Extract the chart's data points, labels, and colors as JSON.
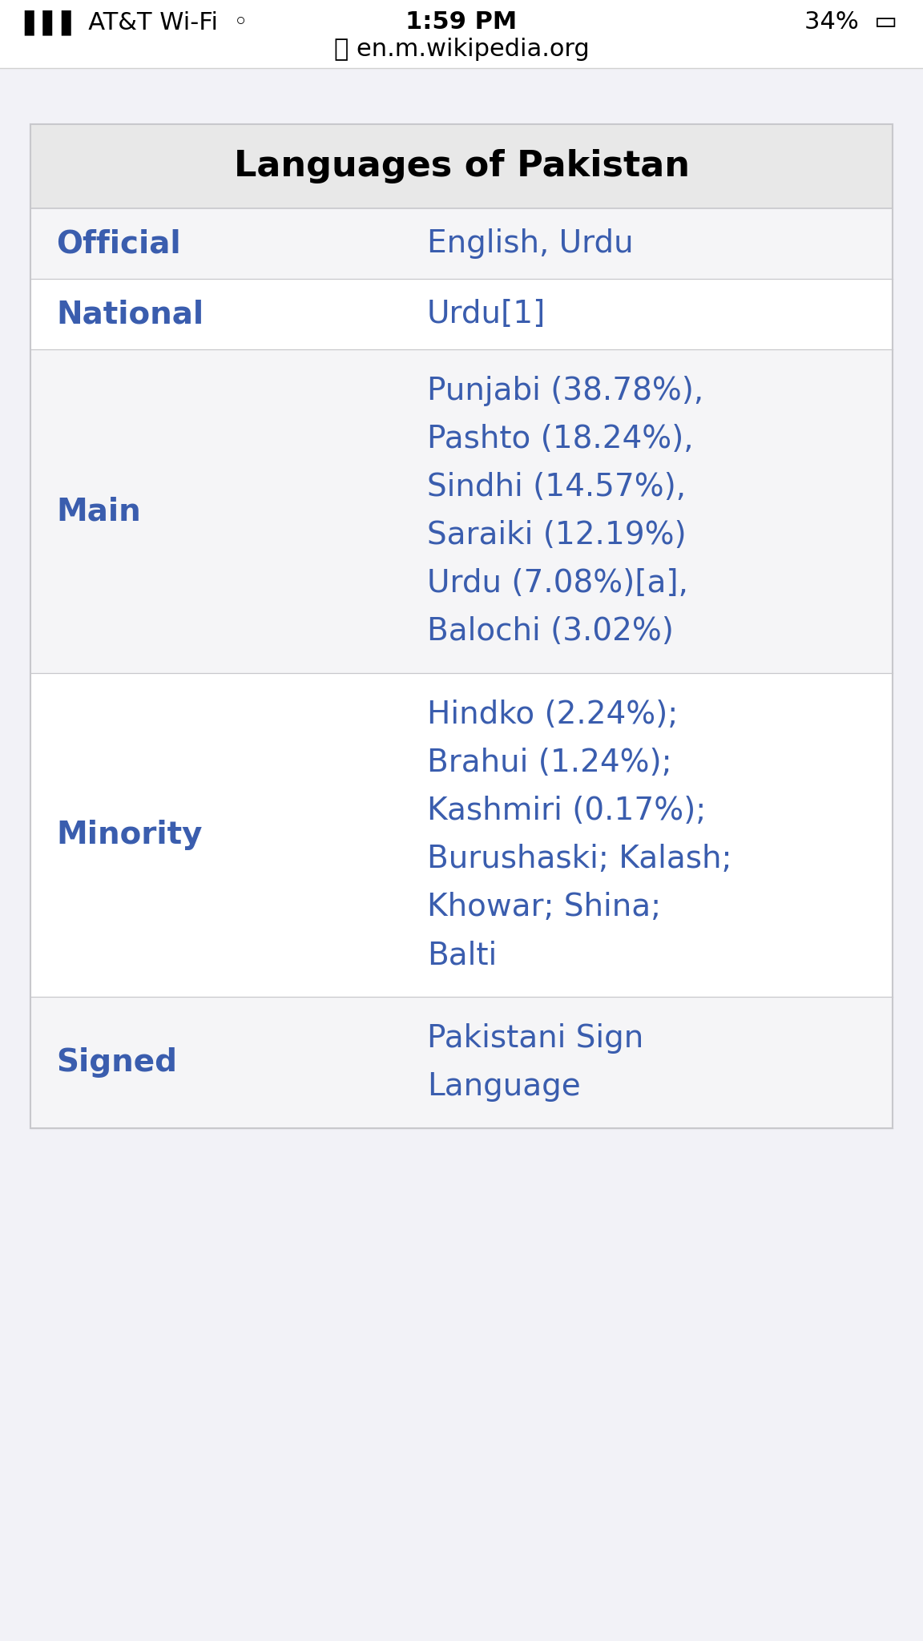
{
  "title": "Languages of Pakistan",
  "title_fontsize": 32,
  "title_color": "#000000",
  "title_bg": "#e8e8e8",
  "row_bg_light": "#f5f5f7",
  "row_bg_white": "#ffffff",
  "border_color": "#c8c8cc",
  "label_color": "#3a5dae",
  "value_color": "#3a5dae",
  "label_fontsize": 28,
  "value_fontsize": 28,
  "statusbar_bg": "#f2f2f7",
  "statusbar_text": "#000000",
  "url_text": "#000000",
  "url_fontsize": 22,
  "status_fontsize": 22,
  "rows": [
    {
      "label": "Official",
      "lines": [
        "English, Urdu"
      ]
    },
    {
      "label": "National",
      "lines": [
        "Urdu[1]"
      ]
    },
    {
      "label": "Main",
      "lines": [
        "Punjabi (38.78%),",
        "Pashto (18.24%),",
        "Sindhi (14.57%),",
        "Saraiki (12.19%)",
        "Urdu (7.08%)[a],",
        "Balochi (3.02%)"
      ]
    },
    {
      "label": "Minority",
      "lines": [
        "Hindko (2.24%);",
        "Brahui (1.24%);",
        "Kashmiri (0.17%);",
        "Burushaski; Kalash;",
        "Khowar; Shina;",
        "Balti"
      ]
    },
    {
      "label": "Signed",
      "lines": [
        "Pakistani Sign",
        "Language"
      ]
    }
  ],
  "outer_bg": "#ffffff",
  "page_bg": "#f2f2f7",
  "fig_width": 11.52,
  "fig_height": 20.48,
  "dpi": 100
}
